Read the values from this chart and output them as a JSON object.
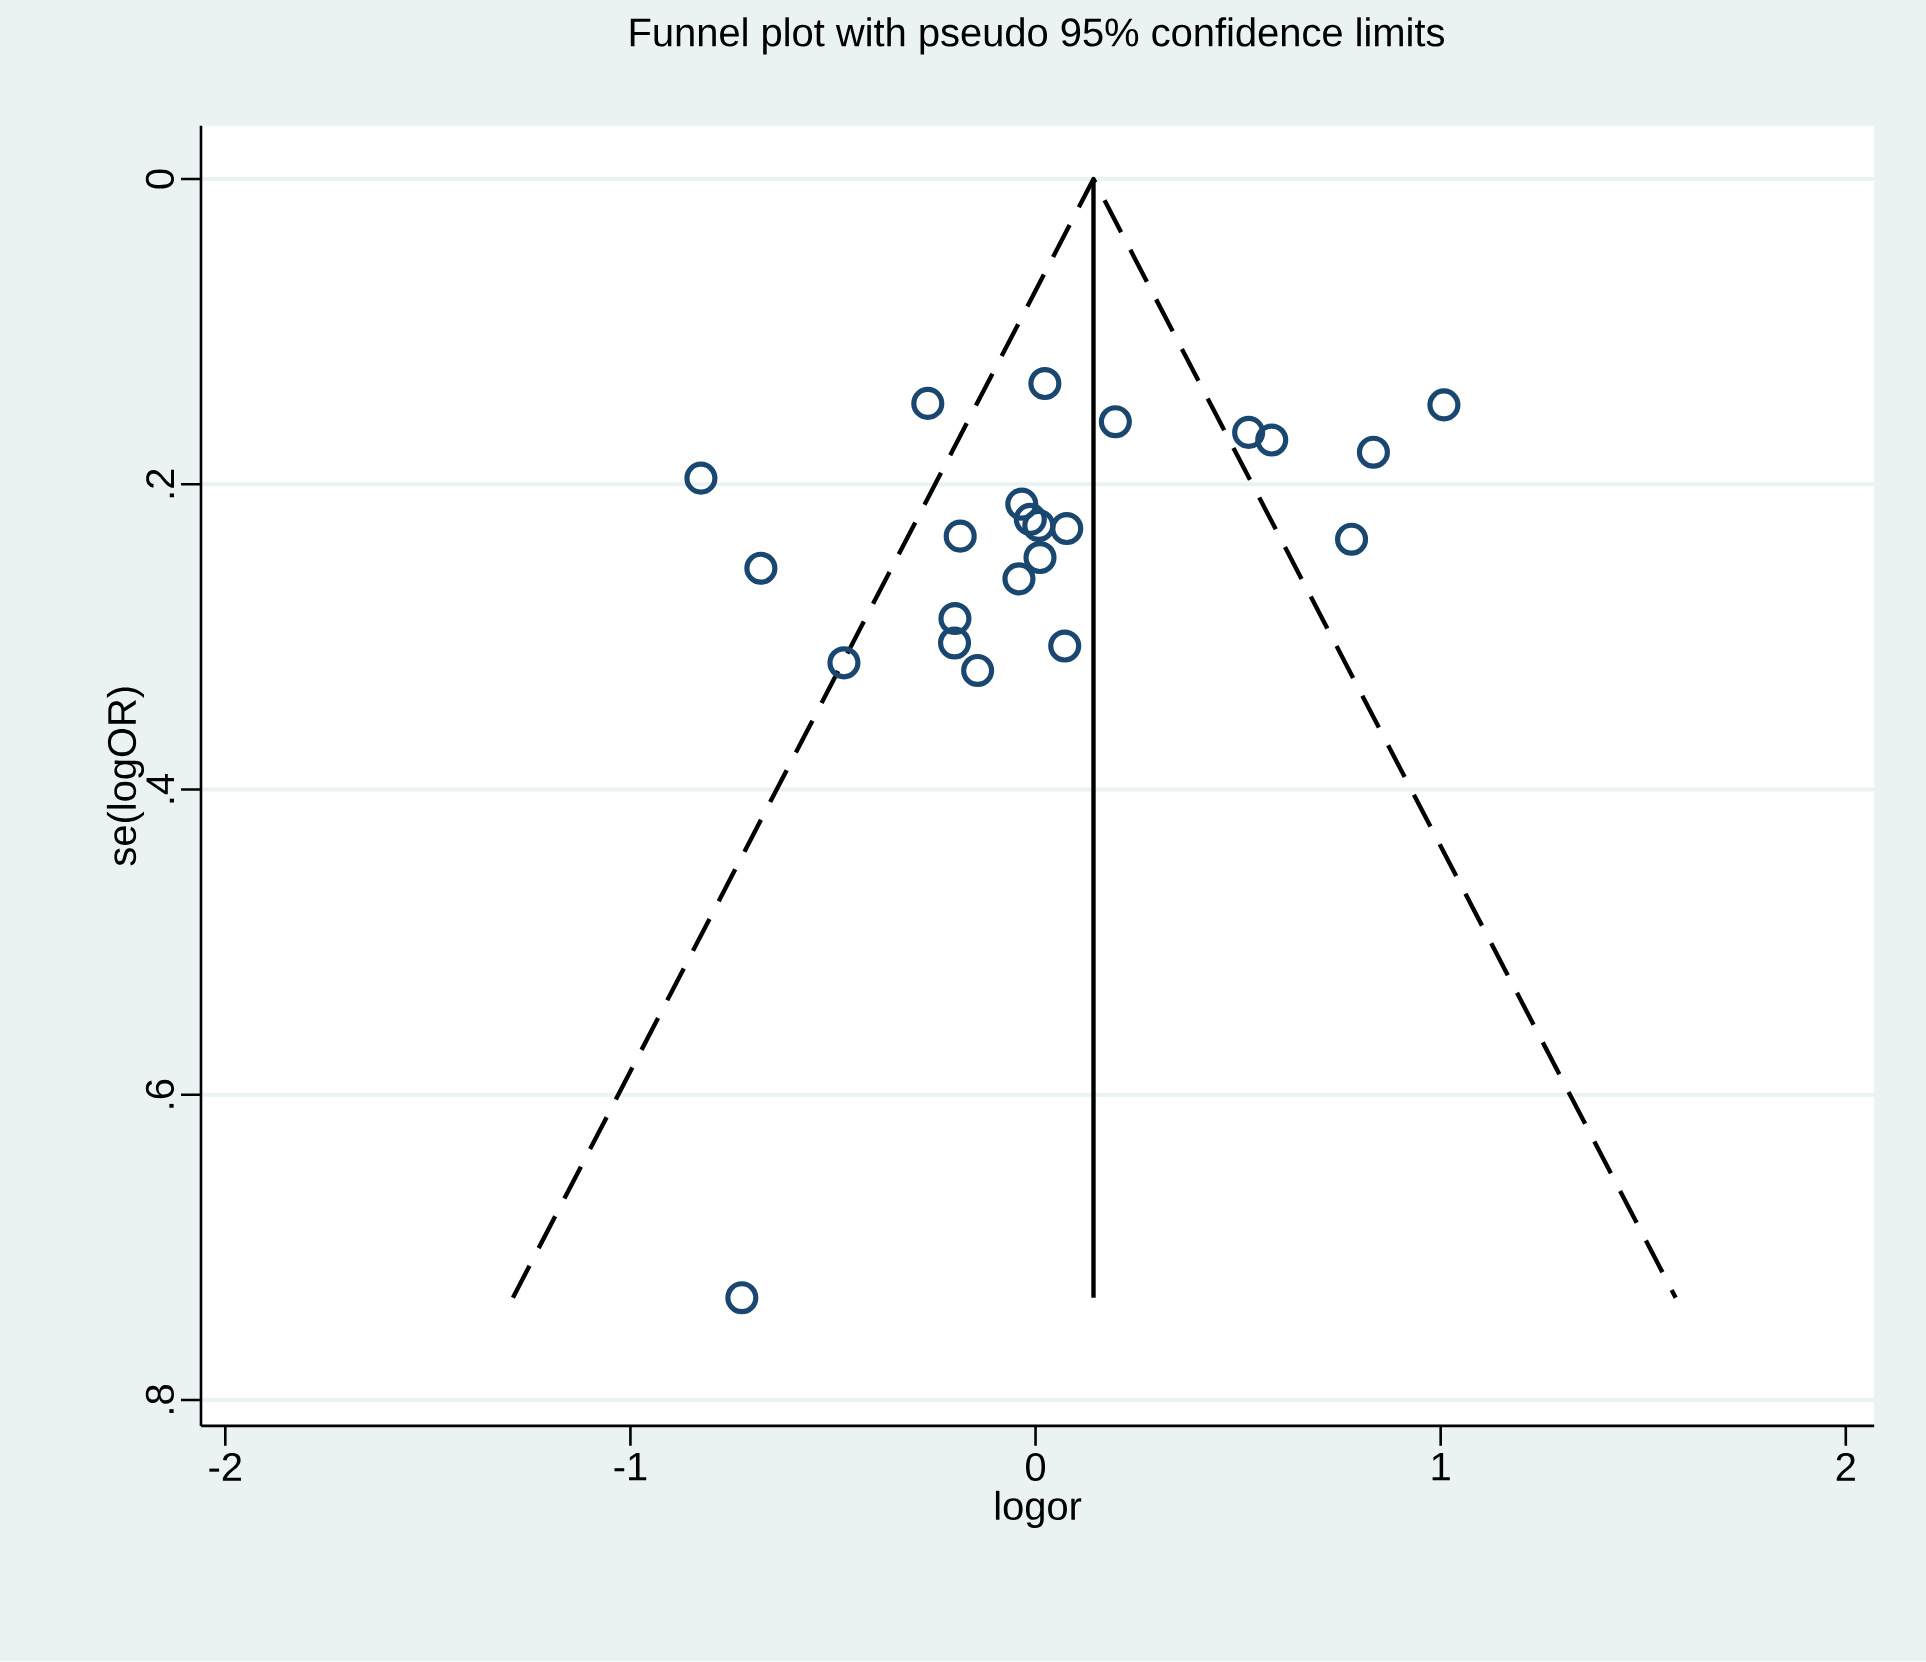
{
  "chart_data": {
    "type": "scatter",
    "title": "Funnel plot with pseudo 95% confidence limits",
    "xlabel": "logor",
    "ylabel": "se(logOR)",
    "xlim": [
      -2.06,
      2.07
    ],
    "ylim": [
      0.817,
      -0.035
    ],
    "xticks": [
      -2,
      -1,
      0,
      1,
      2
    ],
    "yticks": [
      0,
      {
        "value": 0.2,
        "label": ".2"
      },
      {
        "value": 0.4,
        "label": ".4"
      },
      {
        "value": 0.6,
        "label": ".6"
      },
      {
        "value": 0.8,
        "label": ".8"
      }
    ],
    "grid": "y",
    "series": [
      {
        "marker": "circle",
        "color": "#1a476f",
        "x": [
          0.023,
          -0.266,
          0.197,
          0.526,
          0.583,
          1.008,
          0.834,
          -0.826,
          -0.034,
          -0.013,
          0.008,
          0.077,
          -0.186,
          0.78,
          -0.678,
          0.011,
          -0.041,
          -0.199,
          -0.2,
          0.072,
          -0.473,
          -0.143,
          -0.725
        ],
        "values": [
          0.134,
          0.147,
          0.159,
          0.166,
          0.171,
          0.148,
          0.179,
          0.196,
          0.213,
          0.223,
          0.227,
          0.229,
          0.234,
          0.236,
          0.255,
          0.248,
          0.262,
          0.288,
          0.304,
          0.306,
          0.317,
          0.322,
          0.733
        ]
      },
      {
        "type": "line",
        "line_style": "dashed",
        "color": "#000000",
        "x": [
          -1.29,
          0.143,
          1.58
        ],
        "values": [
          0.733,
          0,
          0.733
        ]
      },
      {
        "type": "line",
        "line_style": "solid",
        "color": "#000000",
        "x": [
          0.143,
          0.143
        ],
        "values": [
          0,
          0.733
        ]
      }
    ]
  }
}
